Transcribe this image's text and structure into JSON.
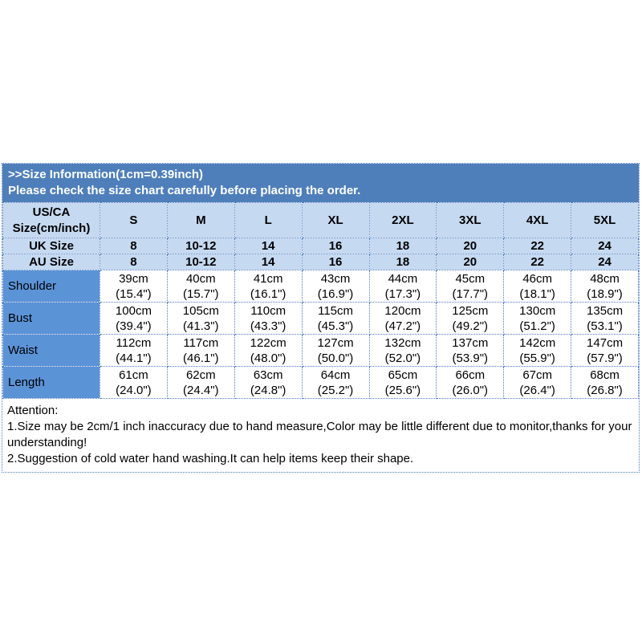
{
  "banner": {
    "line1": ">>Size Information(1cm=0.39inch)",
    "line2": "Please check the size chart carefully before placing the order."
  },
  "size_table": {
    "corner_header_line1": "US/CA",
    "corner_header_line2": "Size(cm/inch)",
    "columns": [
      "S",
      "M",
      "L",
      "XL",
      "2XL",
      "3XL",
      "4XL",
      "5XL"
    ],
    "uk_row": {
      "label": "UK Size",
      "values": [
        "8",
        "10-12",
        "14",
        "16",
        "18",
        "20",
        "22",
        "24"
      ]
    },
    "au_row": {
      "label": "AU Size",
      "values": [
        "8",
        "10-12",
        "14",
        "16",
        "18",
        "20",
        "22",
        "24"
      ]
    },
    "measurement_rows": [
      {
        "label": "Shoulder",
        "cm": [
          "39cm",
          "40cm",
          "41cm",
          "43cm",
          "44cm",
          "45cm",
          "46cm",
          "48cm"
        ],
        "inch": [
          "(15.4\")",
          "(15.7\")",
          "(16.1\")",
          "(16.9\")",
          "(17.3\")",
          "(17.7\")",
          "(18.1\")",
          "(18.9\")"
        ]
      },
      {
        "label": "Bust",
        "cm": [
          "100cm",
          "105cm",
          "110cm",
          "115cm",
          "120cm",
          "125cm",
          "130cm",
          "135cm"
        ],
        "inch": [
          "(39.4\")",
          "(41.3\")",
          "(43.3\")",
          "(45.3\")",
          "(47.2\")",
          "(49.2\")",
          "(51.2\")",
          "(53.1\")"
        ]
      },
      {
        "label": "Waist",
        "cm": [
          "112cm",
          "117cm",
          "122cm",
          "127cm",
          "132cm",
          "137cm",
          "142cm",
          "147cm"
        ],
        "inch": [
          "(44.1\")",
          "(46.1\")",
          "(48.0\")",
          "(50.0\")",
          "(52.0\")",
          "(53.9\")",
          "(55.9\")",
          "(57.9\")"
        ]
      },
      {
        "label": "Length",
        "cm": [
          "61cm",
          "62cm",
          "63cm",
          "64cm",
          "65cm",
          "66cm",
          "67cm",
          "68cm"
        ],
        "inch": [
          "(24.0\")",
          "(24.4\")",
          "(24.8\")",
          "(25.2\")",
          "(25.6\")",
          "(26.0\")",
          "(26.4\")",
          "(26.8\")"
        ]
      }
    ]
  },
  "attention": {
    "title": "Attention:",
    "line1": "1.Size may be 2cm/1 inch inaccuracy due to hand measure,Color may be little different due to monitor,thanks for your understanding!",
    "line2": "2.Suggestion of cold water hand washing.It can help items keep their shape."
  },
  "colors": {
    "banner_bg": "#4e7fba",
    "header_bg": "#c5d9f1",
    "label_bg": "#5b93d7",
    "border": "#4f7cbf",
    "banner_text": "#ffffff",
    "body_text": "#000000"
  }
}
